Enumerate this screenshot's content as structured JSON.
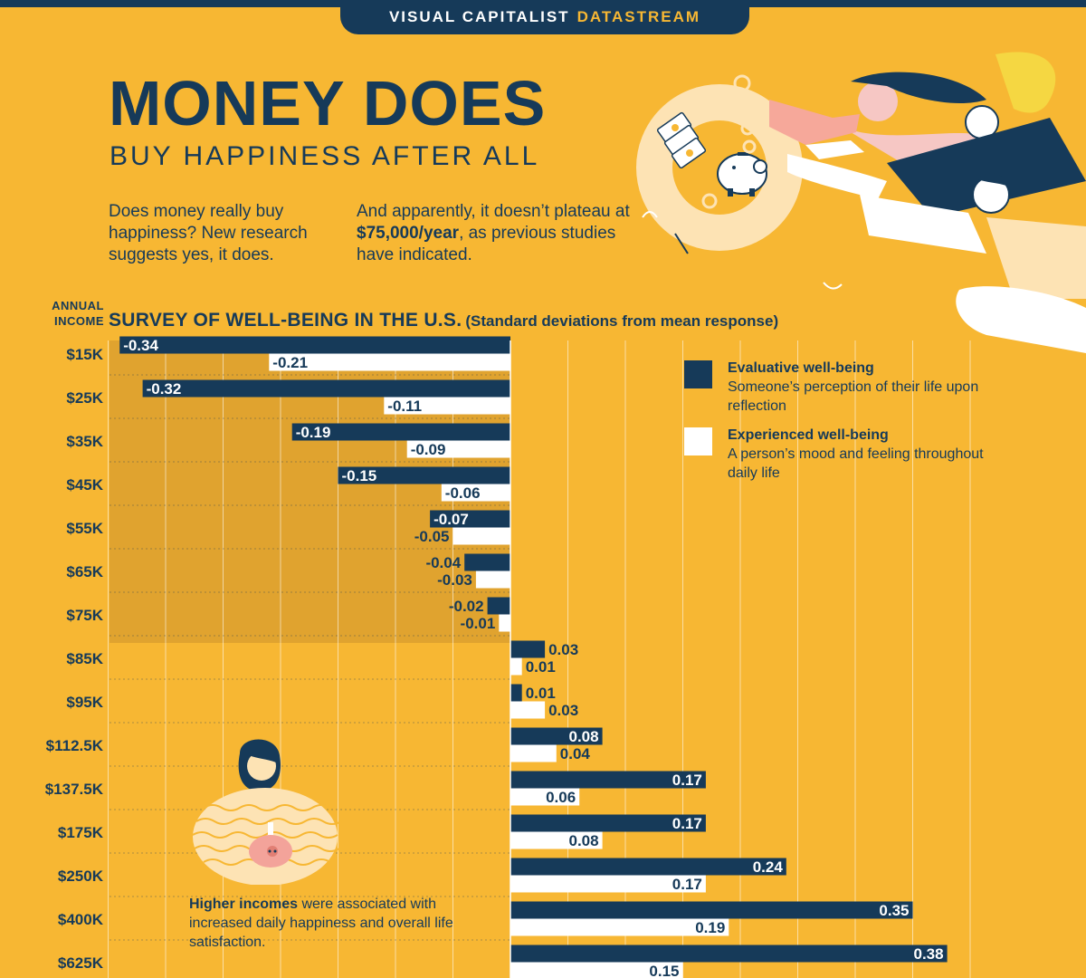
{
  "header": {
    "brand_main": "VISUAL CAPITALIST",
    "brand_sub": "DATASTREAM"
  },
  "title": "MONEY DOES",
  "subtitle": "BUY HAPPINESS AFTER ALL",
  "intro": {
    "left": "Does money really buy happiness? New research suggests yes, it does.",
    "right_before": "And apparently, it doesn’t plateau at ",
    "right_bold": "$75,000/year",
    "right_after": ", as previous studies have indicated."
  },
  "axis_label": "ANNUAL INCOME",
  "note": {
    "bold": "Higher incomes",
    "rest": " were associated with increased daily happiness and overall life satisfaction."
  },
  "colors": {
    "background": "#f7b733",
    "navy": "#163a59",
    "white": "#ffffff",
    "shade": "#dca02f"
  },
  "icons": [
    "piggy-bank-illustration",
    "money-ring-illustration",
    "reaching-people-illustration",
    "woman-holding-piggy-bank-illustration"
  ],
  "chart_data": {
    "type": "bar",
    "orientation": "horizontal",
    "title": "SURVEY OF WELL-BEING IN THE U.S.",
    "subtitle": "(Standard deviations from mean response)",
    "ylabel": "ANNUAL INCOME",
    "categories": [
      "$15K",
      "$25K",
      "$35K",
      "$45K",
      "$55K",
      "$65K",
      "$75K",
      "$85K",
      "$95K",
      "$112.5K",
      "$137.5K",
      "$175K",
      "$250K",
      "$400K",
      "$625K"
    ],
    "series": [
      {
        "name": "Evaluative well-being",
        "description": "Someone’s perception of their life upon reflection",
        "color": "#163a59",
        "values": [
          -0.34,
          -0.32,
          -0.19,
          -0.15,
          -0.07,
          -0.04,
          -0.02,
          0.03,
          0.01,
          0.08,
          0.17,
          0.17,
          0.24,
          0.35,
          0.38
        ],
        "labels": [
          "-0.34",
          "-0.32",
          "-0.19",
          "-0.15",
          "-0.07",
          "-0.04",
          "-0.02",
          "0.03",
          "0.01",
          "0.08",
          "0.17",
          "0.17",
          "0.24",
          "0.35",
          "0.38"
        ]
      },
      {
        "name": "Experienced well-being",
        "description": "A person’s mood and feeling throughout daily life",
        "color": "#ffffff",
        "values": [
          -0.21,
          -0.11,
          -0.09,
          -0.06,
          -0.05,
          -0.03,
          -0.01,
          0.01,
          0.03,
          0.04,
          0.06,
          0.08,
          0.17,
          0.19,
          0.15
        ],
        "labels": [
          "-0.21",
          "-0.11",
          "-0.09",
          "-0.06",
          "-0.05",
          "-0.03",
          "-0.01",
          "0.01",
          "0.03",
          "0.04",
          "0.06",
          "0.08",
          "0.17",
          "0.19",
          "0.15"
        ]
      }
    ],
    "xlim": [
      -0.35,
      0.4
    ],
    "grid": true,
    "legend_position": "top-right"
  }
}
